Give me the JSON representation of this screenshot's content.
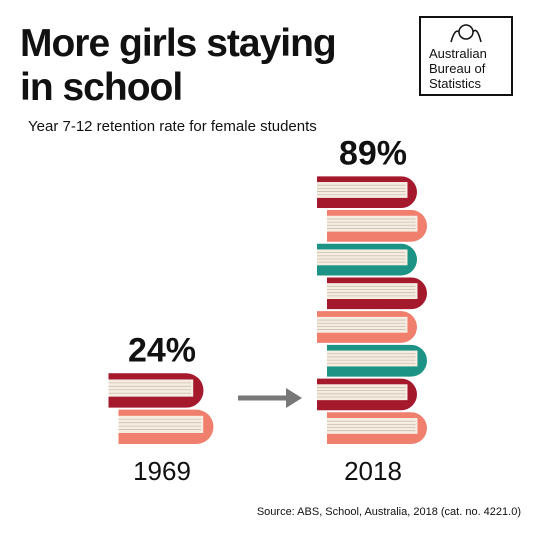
{
  "chart_data": {
    "type": "pictograph",
    "title": "More girls staying in school",
    "subtitle": "Year 7-12 retention rate for female students",
    "logo": "Australian Bureau of Statistics",
    "source": "Source: ABS, School, Australia, 2018 (cat. no. 4221.0)",
    "categories": [
      "1969",
      "2018"
    ],
    "values": [
      24,
      89
    ],
    "value_labels": [
      "24%",
      "89%"
    ],
    "colors": [
      "#f07f6e",
      "#a5192d",
      "#1c9384"
    ]
  }
}
